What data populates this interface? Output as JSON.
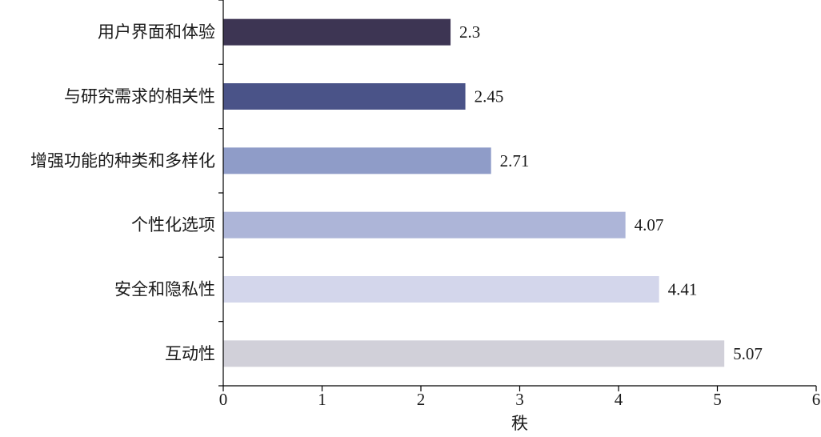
{
  "chart_data": {
    "type": "bar",
    "orientation": "horizontal",
    "categories": [
      "用户界面和体验",
      "与研究需求的相关性",
      "增强功能的种类和多样化",
      "个性化选项",
      "安全和隐私性",
      "互动性"
    ],
    "values": [
      2.3,
      2.45,
      2.71,
      4.07,
      4.41,
      5.07
    ],
    "value_labels": [
      "2.3",
      "2.45",
      "2.71",
      "4.07",
      "4.41",
      "5.07"
    ],
    "colors": [
      "#3d3553",
      "#4a5388",
      "#8f9cc8",
      "#adb5d8",
      "#d3d6eb",
      "#d1d0d9"
    ],
    "title": "",
    "xlabel": "秩",
    "ylabel": "",
    "xlim": [
      0,
      6
    ],
    "xticks": [
      "0",
      "1",
      "2",
      "3",
      "4",
      "5",
      "6"
    ],
    "grid": false,
    "legend": false
  }
}
